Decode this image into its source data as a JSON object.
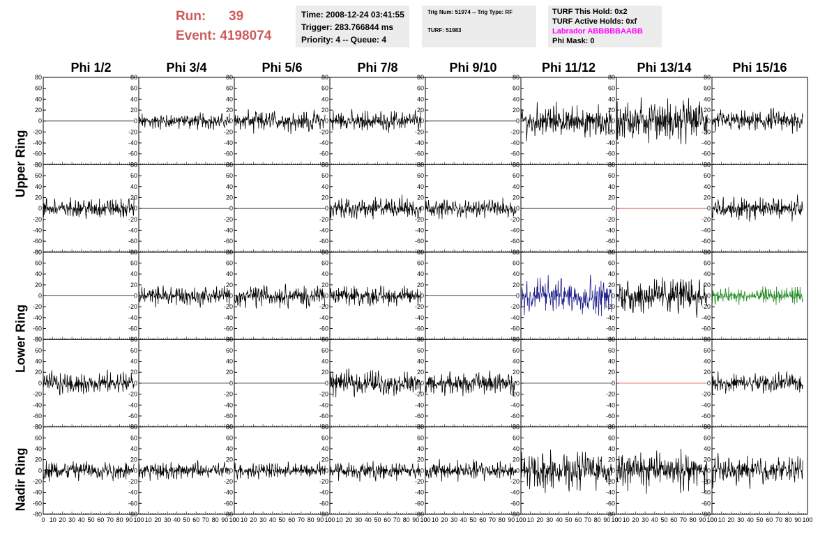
{
  "header": {
    "run_label": "Run:",
    "run_value": "39",
    "event_label": "Event:",
    "event_value": "4198074",
    "time": "Time: 2008-12-24 03:41:55",
    "trigger": "Trigger: 283.766844 ms",
    "priority": "Priority: 4 -- Queue: 4",
    "trig_num": "Trig Num: 51974 -- Trig Type: RF",
    "turf": "TURF: 51983",
    "turf_hold": "TURF This Hold: 0x2",
    "turf_active": "TURF Active Holds: 0xf",
    "labrador": "Labrador ABBBBBAABB",
    "phi_mask": "Phi Mask: 0"
  },
  "colors": {
    "header_red": "#cd5c5c",
    "labrador_magenta": "#ff00ff",
    "blue_trace": "#1c1c8a",
    "green_trace": "#228b22",
    "flat_red": "#cc2222"
  },
  "column_titles": [
    "Phi 1/2",
    "Phi 3/4",
    "Phi 5/6",
    "Phi 7/8",
    "Phi 9/10",
    "Phi 11/12",
    "Phi 13/14",
    "Phi 15/16"
  ],
  "row_labels": [
    "Upper Ring",
    "Lower Ring",
    "Nadir Ring"
  ],
  "chart_data": {
    "type": "line",
    "grid": "8 columns x 5 rows of waveform panels",
    "xlim": [
      0,
      100
    ],
    "ylim": [
      -80,
      80
    ],
    "x_tick_labels": [
      "0",
      "10",
      "20",
      "30",
      "40",
      "50",
      "60",
      "70",
      "80",
      "90",
      "100"
    ],
    "y_tick_labels": [
      "80",
      "60",
      "40",
      "20",
      "0",
      "-20",
      "-40",
      "-60",
      "-80"
    ],
    "panels": [
      [
        {
          "amp": 0,
          "color": "#000000"
        },
        {
          "amp": 14,
          "color": "#000000"
        },
        {
          "amp": 20,
          "color": "#000000"
        },
        {
          "amp": 18,
          "color": "#000000"
        },
        {
          "amp": 0,
          "color": "#000000"
        },
        {
          "amp": 30,
          "color": "#000000"
        },
        {
          "amp": 38,
          "color": "#000000"
        },
        {
          "amp": 20,
          "color": "#000000"
        }
      ],
      [
        {
          "amp": 18,
          "color": "#000000"
        },
        {
          "amp": 0,
          "color": "#000000"
        },
        {
          "amp": 0,
          "color": "#000000"
        },
        {
          "amp": 20,
          "color": "#000000"
        },
        {
          "amp": 16,
          "color": "#000000"
        },
        {
          "amp": 0,
          "color": "#000000"
        },
        {
          "amp": 0,
          "color": "#cc2222"
        },
        {
          "amp": 20,
          "color": "#000000"
        }
      ],
      [
        {
          "amp": 0,
          "color": "#000000"
        },
        {
          "amp": 18,
          "color": "#000000"
        },
        {
          "amp": 20,
          "color": "#000000"
        },
        {
          "amp": 18,
          "color": "#000000"
        },
        {
          "amp": 0,
          "color": "#000000"
        },
        {
          "amp": 34,
          "color": "#1c1c8a"
        },
        {
          "amp": 34,
          "color": "#000000"
        },
        {
          "amp": 16,
          "color": "#228b22"
        }
      ],
      [
        {
          "amp": 20,
          "color": "#000000"
        },
        {
          "amp": 0,
          "color": "#000000"
        },
        {
          "amp": 0,
          "color": "#000000"
        },
        {
          "amp": 22,
          "color": "#000000"
        },
        {
          "amp": 22,
          "color": "#000000"
        },
        {
          "amp": 0,
          "color": "#000000"
        },
        {
          "amp": 0,
          "color": "#cc2222"
        },
        {
          "amp": 18,
          "color": "#000000"
        }
      ],
      [
        {
          "amp": 18,
          "color": "#000000"
        },
        {
          "amp": 16,
          "color": "#000000"
        },
        {
          "amp": 14,
          "color": "#000000"
        },
        {
          "amp": 16,
          "color": "#000000"
        },
        {
          "amp": 18,
          "color": "#000000"
        },
        {
          "amp": 34,
          "color": "#000000"
        },
        {
          "amp": 34,
          "color": "#000000"
        },
        {
          "amp": 26,
          "color": "#000000"
        }
      ]
    ]
  }
}
